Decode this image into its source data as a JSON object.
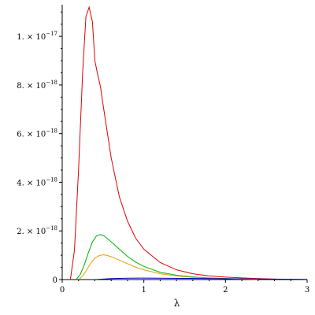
{
  "chart_data": {
    "type": "line",
    "title": "",
    "xlabel": "λ",
    "ylabel": "",
    "xlim": [
      0,
      3
    ],
    "ylim": [
      0,
      1.13e-17
    ],
    "grid": false,
    "legend": "none",
    "x_ticks": [
      {
        "value": 0,
        "label": "0"
      },
      {
        "value": 1,
        "label": "1"
      },
      {
        "value": 2,
        "label": "2"
      },
      {
        "value": 3,
        "label": "3"
      }
    ],
    "y_ticks": [
      {
        "value": 0,
        "mantissa": "0",
        "exponent": ""
      },
      {
        "value": 2e-18,
        "mantissa": "2. × 10",
        "exponent": "−18"
      },
      {
        "value": 4e-18,
        "mantissa": "4. × 10",
        "exponent": "−18"
      },
      {
        "value": 6e-18,
        "mantissa": "6. × 10",
        "exponent": "−18"
      },
      {
        "value": 8e-18,
        "mantissa": "8. × 10",
        "exponent": "−18"
      },
      {
        "value": 1e-17,
        "mantissa": "1. × 10",
        "exponent": "−17"
      }
    ],
    "series": [
      {
        "color": "#e00000",
        "x": [
          0.1,
          0.15,
          0.2,
          0.25,
          0.29,
          0.33,
          0.37,
          0.4,
          0.43,
          0.47,
          0.5,
          0.6,
          0.7,
          0.8,
          0.9,
          1.0,
          1.2,
          1.4,
          1.6,
          1.8,
          2.0,
          2.2,
          2.4,
          2.6,
          2.65
        ],
        "y": [
          0,
          1.2e-18,
          4.5e-18,
          8.5e-18,
          1.08e-17,
          1.12e-17,
          1.06e-17,
          9e-18,
          8.5e-18,
          7.9e-18,
          7.2e-18,
          5e-18,
          3.4e-18,
          2.4e-18,
          1.7e-18,
          1.25e-18,
          7e-19,
          4e-19,
          2.4e-19,
          1.5e-19,
          1e-19,
          7e-20,
          4e-20,
          2e-20,
          1.5e-20
        ]
      },
      {
        "color": "#00b000",
        "x": [
          0.17,
          0.22,
          0.27,
          0.32,
          0.37,
          0.42,
          0.47,
          0.52,
          0.6,
          0.7,
          0.8,
          0.9,
          1.0,
          1.2,
          1.4,
          1.6,
          1.8,
          2.0,
          2.2,
          2.4
        ],
        "y": [
          0,
          2e-19,
          6e-19,
          1.1e-18,
          1.55e-18,
          1.8e-18,
          1.85e-18,
          1.78e-18,
          1.55e-18,
          1.25e-18,
          9.5e-19,
          7.2e-19,
          5.4e-19,
          3e-19,
          1.8e-19,
          1.1e-19,
          7e-20,
          4e-20,
          2e-20,
          1e-20
        ]
      },
      {
        "color": "#e0a000",
        "x": [
          0.2,
          0.25,
          0.3,
          0.35,
          0.4,
          0.45,
          0.5,
          0.55,
          0.6,
          0.7,
          0.8,
          0.9,
          1.0,
          1.2,
          1.4,
          1.6,
          1.8,
          2.0,
          2.2,
          2.4
        ],
        "y": [
          0,
          1.5e-19,
          4e-19,
          6.8e-19,
          8.8e-19,
          9.8e-19,
          1.02e-18,
          9.9e-19,
          9.4e-19,
          8e-19,
          6.5e-19,
          5.1e-19,
          4e-19,
          2.4e-19,
          1.5e-19,
          9e-20,
          6e-20,
          3.5e-20,
          2e-20,
          1e-20
        ]
      },
      {
        "color": "#0000c0",
        "x": [
          0.4,
          0.5,
          0.6,
          0.8,
          1.0,
          1.5,
          2.0,
          2.5,
          3.0
        ],
        "y": [
          0,
          2e-20,
          4e-20,
          5.5e-20,
          6e-20,
          5e-20,
          3.5e-20,
          2e-20,
          1e-20
        ]
      }
    ]
  }
}
